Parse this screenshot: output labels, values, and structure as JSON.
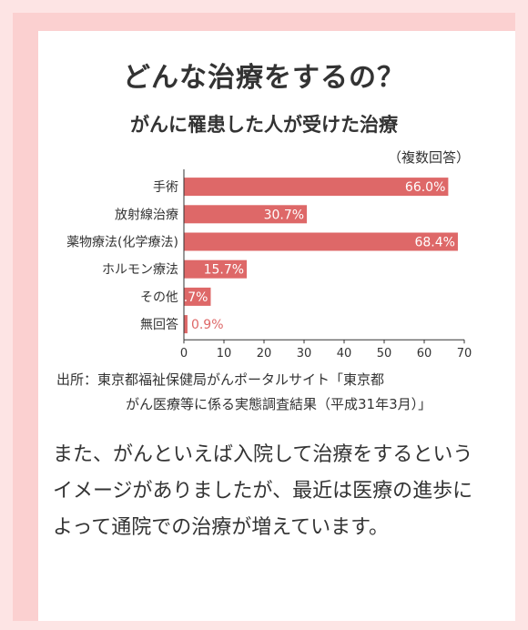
{
  "page": {
    "title": "どんな治療をするの？",
    "source_line1": "出所：東京都福祉保健局がんポータルサイト「東京都",
    "source_line2": "がん医療等に係る実態調査結果（平成31年3月）」",
    "body_text": "また、がんといえば入院して治療をするというイメージがありましたが、最近は医療の進歩によって通院での治療が増えています。"
  },
  "colors": {
    "bar": "#de6868",
    "frame": "#fbd0d0",
    "background": "#fde4e4"
  },
  "chart_data": {
    "type": "bar",
    "orientation": "horizontal",
    "title": "がんに罹患した人が受けた治療",
    "note": "（複数回答）",
    "categories": [
      "手術",
      "放射線治療",
      "薬物療法(化学療法)",
      "ホルモン療法",
      "その他",
      "無回答"
    ],
    "values": [
      66.0,
      30.7,
      68.4,
      15.7,
      6.7,
      0.9
    ],
    "value_labels": [
      "66.0%",
      "30.7%",
      "68.4%",
      "15.7%",
      "6.7%",
      "0.9%"
    ],
    "xlim": [
      0,
      70
    ],
    "xticks": [
      "0",
      "10",
      "20",
      "30",
      "40",
      "50",
      "60",
      "70"
    ],
    "xlabel": "",
    "ylabel": "",
    "grid": false
  }
}
